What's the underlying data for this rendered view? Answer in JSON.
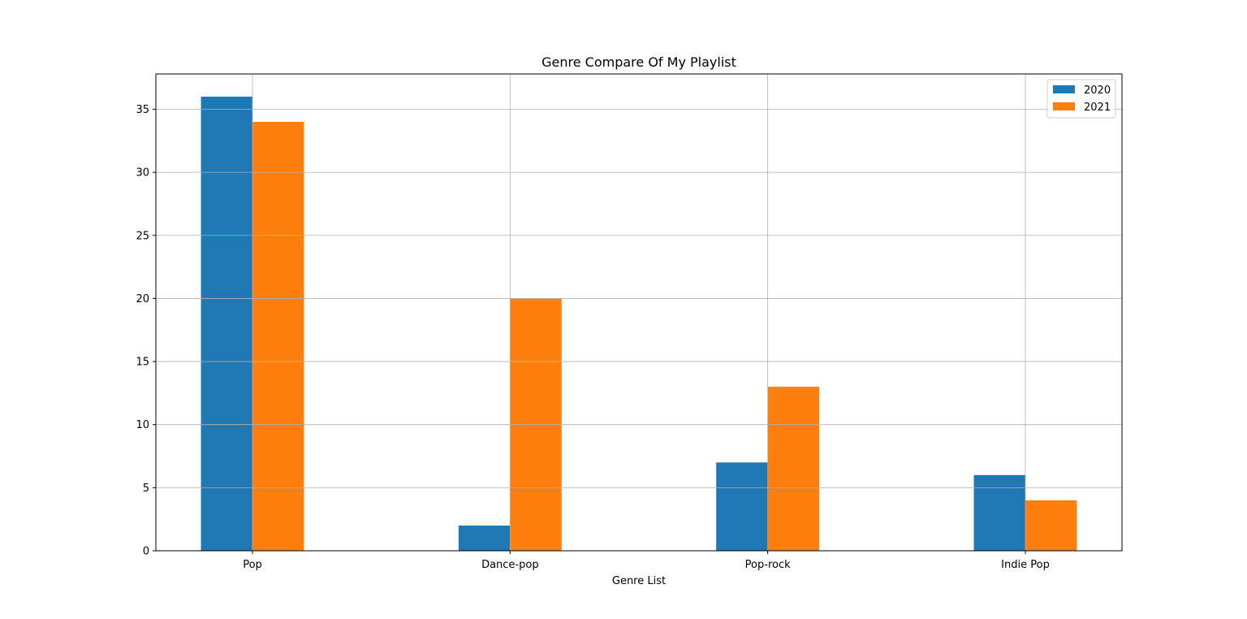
{
  "chart_data": {
    "type": "bar",
    "title": "Genre Compare Of My Playlist",
    "xlabel": "Genre List",
    "ylabel": "",
    "categories": [
      "Pop",
      "Dance-pop",
      "Pop-rock",
      "Indie Pop"
    ],
    "series": [
      {
        "name": "2020",
        "values": [
          36,
          2,
          7,
          6
        ],
        "color": "#1f77b4"
      },
      {
        "name": "2021",
        "values": [
          34,
          20,
          13,
          4
        ],
        "color": "#ff7f0e"
      }
    ],
    "ylim": [
      0,
      37.8
    ],
    "yticks": [
      0,
      5,
      10,
      15,
      20,
      25,
      30,
      35
    ],
    "grid": true,
    "legend_position": "top-right"
  }
}
